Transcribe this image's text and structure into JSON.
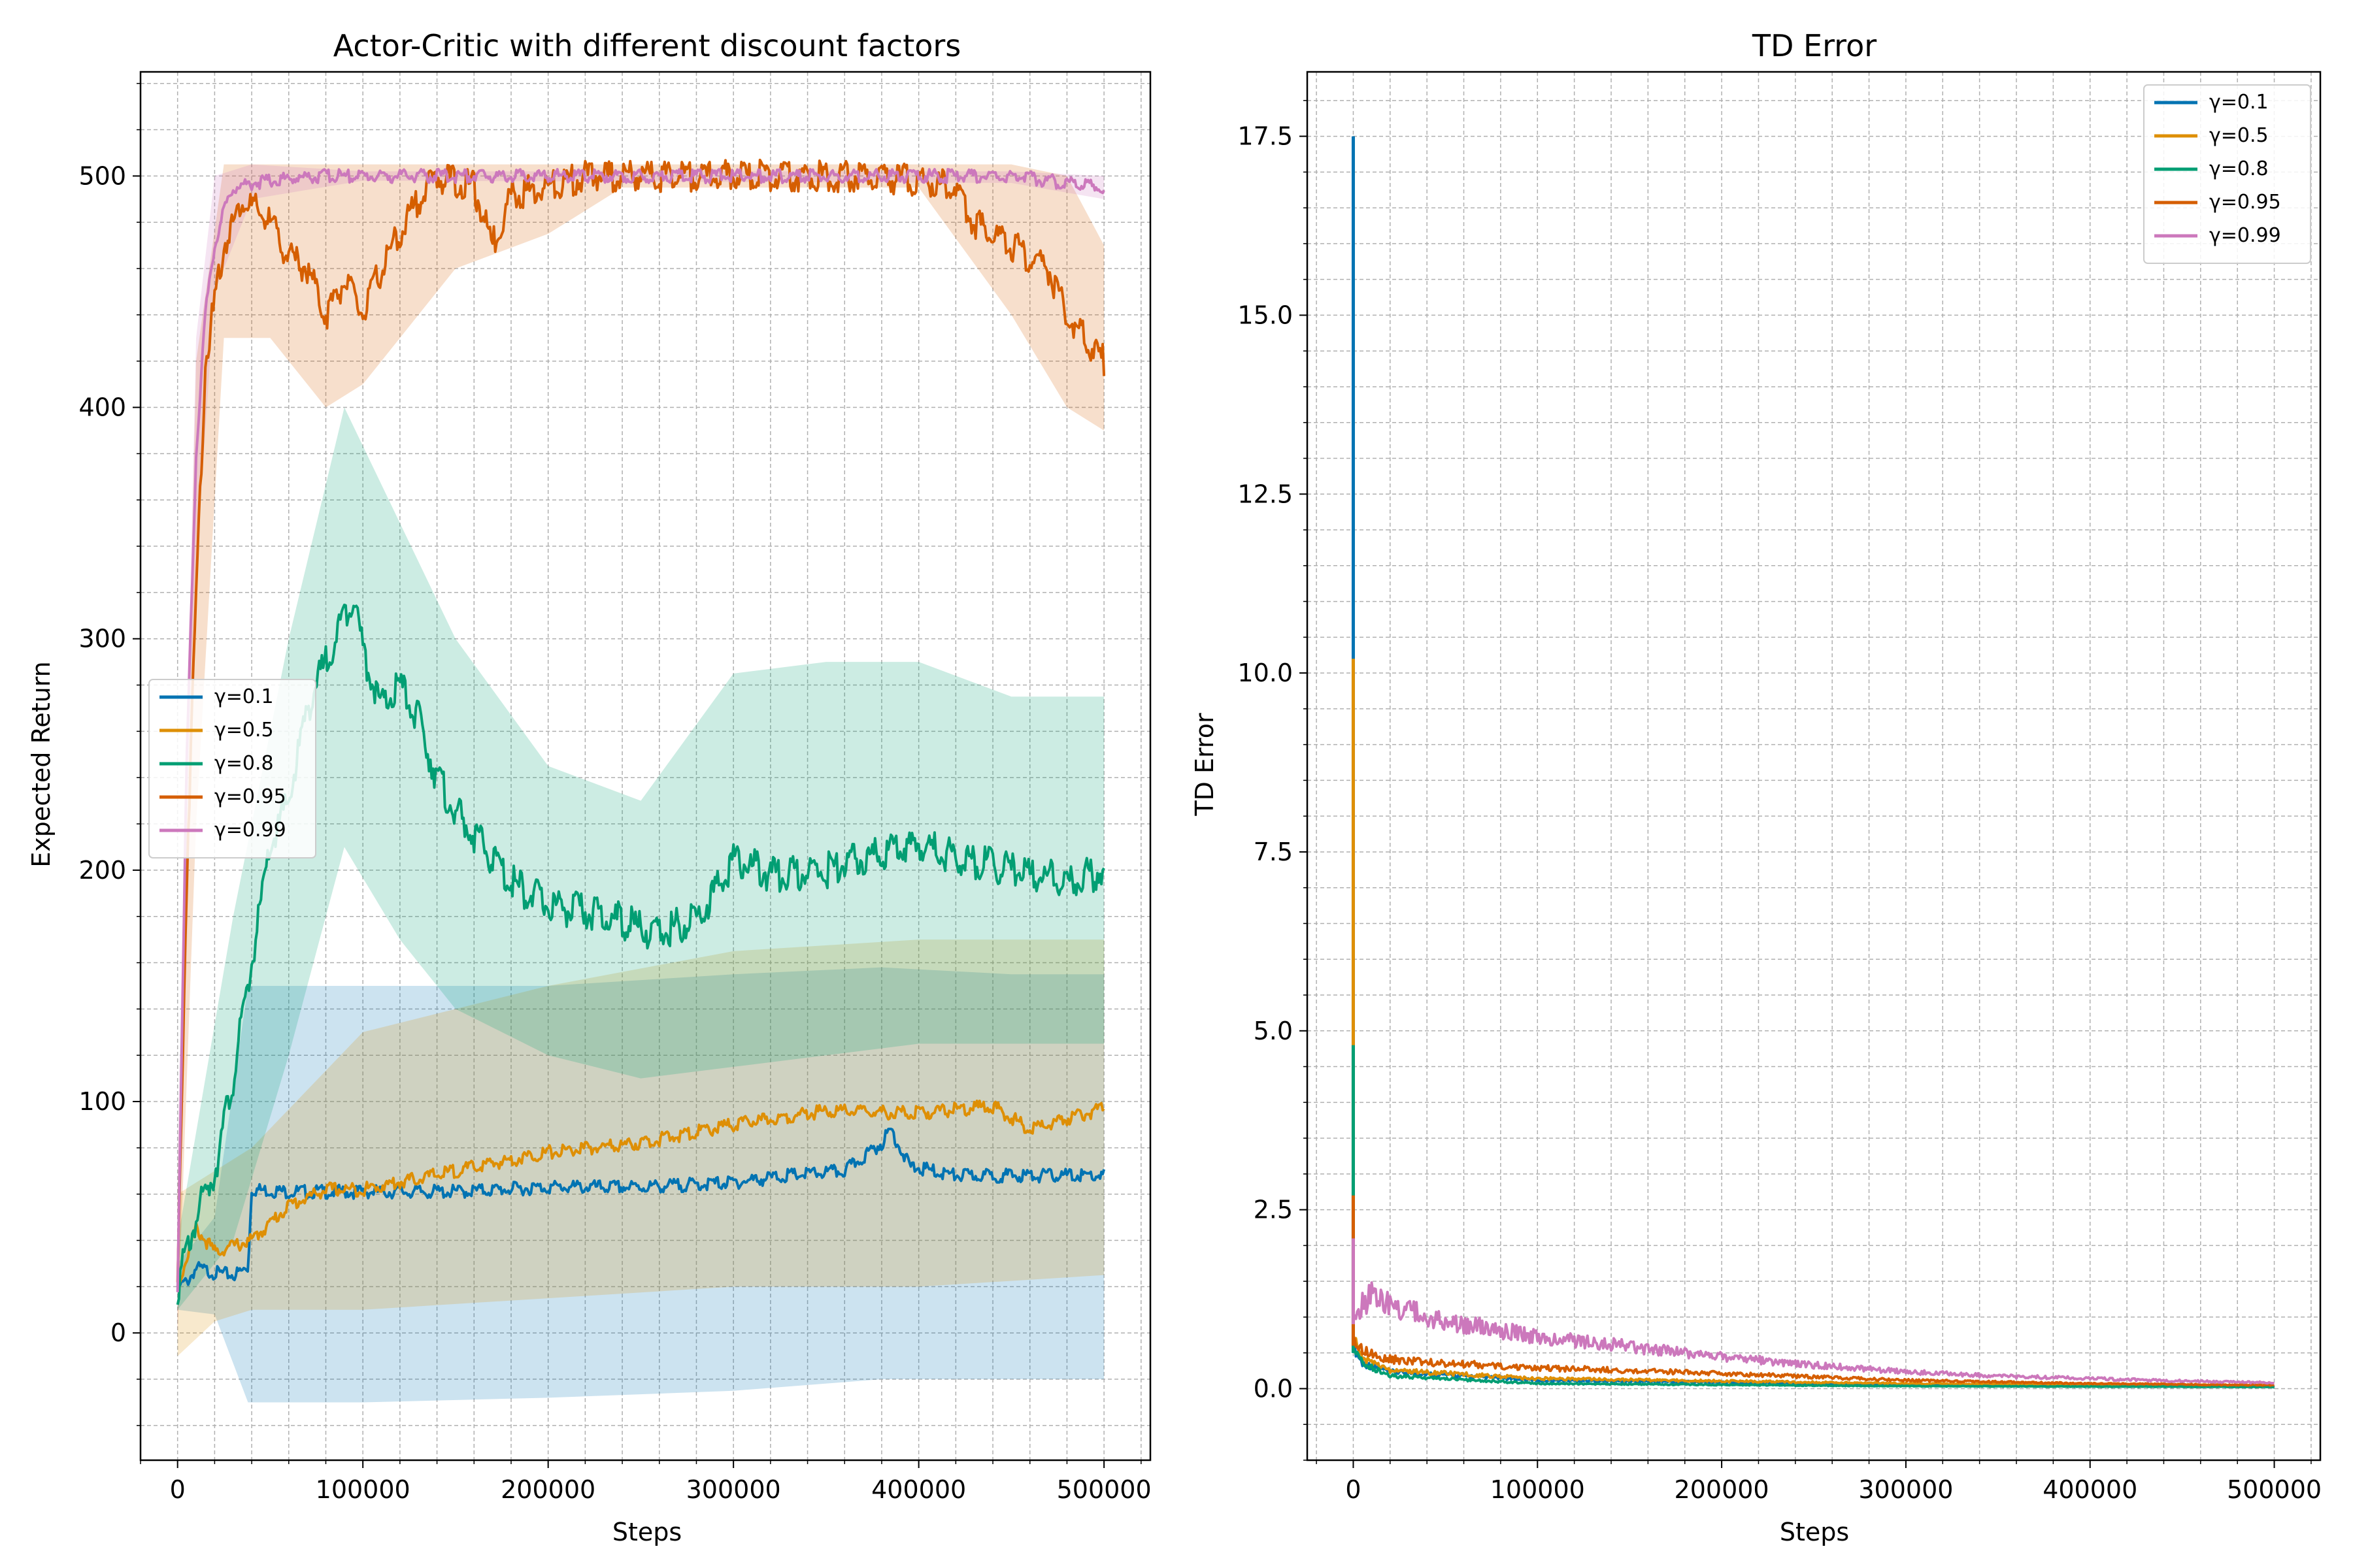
{
  "chart_data": [
    {
      "type": "line",
      "title": "Actor-Critic with different discount factors",
      "xlabel": "Steps",
      "ylabel": "Expected Return",
      "xlim": [
        -20000,
        525000
      ],
      "ylim": [
        -55,
        545
      ],
      "xticks": [
        0,
        100000,
        200000,
        300000,
        400000,
        500000
      ],
      "yticks": [
        0,
        100,
        200,
        300,
        400,
        500
      ],
      "grid": true,
      "legend": "center-left",
      "series": [
        {
          "name": "γ=0.1",
          "color": "#0173b2",
          "points": [
            [
              0,
              20
            ],
            [
              5000,
              22
            ],
            [
              10000,
              28
            ],
            [
              20000,
              26
            ],
            [
              30000,
              25
            ],
            [
              38000,
              28
            ],
            [
              40000,
              62
            ],
            [
              60000,
              61
            ],
            [
              100000,
              61
            ],
            [
              150000,
              61
            ],
            [
              200000,
              63
            ],
            [
              250000,
              63
            ],
            [
              300000,
              65
            ],
            [
              330000,
              68
            ],
            [
              360000,
              70
            ],
            [
              380000,
              82
            ],
            [
              385000,
              88
            ],
            [
              395000,
              72
            ],
            [
              420000,
              68
            ],
            [
              450000,
              68
            ],
            [
              500000,
              68
            ]
          ],
          "band": [
            [
              0,
              10,
              30
            ],
            [
              20000,
              8,
              50
            ],
            [
              38000,
              -30,
              150
            ],
            [
              60000,
              -30,
              150
            ],
            [
              100000,
              -30,
              150
            ],
            [
              200000,
              -28,
              150
            ],
            [
              300000,
              -25,
              155
            ],
            [
              380000,
              -20,
              158
            ],
            [
              450000,
              -20,
              155
            ],
            [
              500000,
              -20,
              155
            ]
          ]
        },
        {
          "name": "γ=0.5",
          "color": "#de8f05",
          "points": [
            [
              0,
              20
            ],
            [
              10000,
              45
            ],
            [
              20000,
              35
            ],
            [
              40000,
              40
            ],
            [
              60000,
              55
            ],
            [
              80000,
              62
            ],
            [
              100000,
              62
            ],
            [
              150000,
              70
            ],
            [
              200000,
              78
            ],
            [
              250000,
              82
            ],
            [
              300000,
              90
            ],
            [
              350000,
              96
            ],
            [
              400000,
              95
            ],
            [
              440000,
              98
            ],
            [
              460000,
              88
            ],
            [
              500000,
              97
            ]
          ],
          "band": [
            [
              0,
              -10,
              60
            ],
            [
              20000,
              5,
              70
            ],
            [
              40000,
              10,
              80
            ],
            [
              100000,
              10,
              130
            ],
            [
              200000,
              15,
              150
            ],
            [
              300000,
              20,
              165
            ],
            [
              400000,
              20,
              170
            ],
            [
              500000,
              25,
              170
            ]
          ]
        },
        {
          "name": "γ=0.8",
          "color": "#029e73",
          "points": [
            [
              0,
              20
            ],
            [
              10000,
              50
            ],
            [
              20000,
              70
            ],
            [
              30000,
              110
            ],
            [
              40000,
              160
            ],
            [
              50000,
              210
            ],
            [
              60000,
              230
            ],
            [
              70000,
              270
            ],
            [
              80000,
              290
            ],
            [
              90000,
              310
            ],
            [
              95000,
              320
            ],
            [
              100000,
              295
            ],
            [
              110000,
              270
            ],
            [
              120000,
              280
            ],
            [
              130000,
              265
            ],
            [
              140000,
              240
            ],
            [
              150000,
              225
            ],
            [
              160000,
              215
            ],
            [
              180000,
              195
            ],
            [
              200000,
              185
            ],
            [
              220000,
              182
            ],
            [
              240000,
              178
            ],
            [
              260000,
              172
            ],
            [
              280000,
              180
            ],
            [
              290000,
              190
            ],
            [
              300000,
              205
            ],
            [
              320000,
              198
            ],
            [
              350000,
              200
            ],
            [
              370000,
              205
            ],
            [
              400000,
              212
            ],
            [
              420000,
              205
            ],
            [
              450000,
              200
            ],
            [
              480000,
              195
            ],
            [
              500000,
              200
            ]
          ],
          "band": [
            [
              0,
              10,
              40
            ],
            [
              30000,
              40,
              180
            ],
            [
              60000,
              120,
              300
            ],
            [
              90000,
              210,
              400
            ],
            [
              120000,
              170,
              350
            ],
            [
              150000,
              140,
              300
            ],
            [
              200000,
              120,
              245
            ],
            [
              250000,
              110,
              230
            ],
            [
              300000,
              115,
              285
            ],
            [
              350000,
              120,
              290
            ],
            [
              400000,
              125,
              290
            ],
            [
              450000,
              125,
              275
            ],
            [
              500000,
              125,
              275
            ]
          ]
        },
        {
          "name": "γ=0.95",
          "color": "#d55e00",
          "points": [
            [
              0,
              20
            ],
            [
              5000,
              200
            ],
            [
              10000,
              320
            ],
            [
              15000,
              420
            ],
            [
              25000,
              470
            ],
            [
              35000,
              490
            ],
            [
              50000,
              480
            ],
            [
              60000,
              465
            ],
            [
              70000,
              460
            ],
            [
              80000,
              440
            ],
            [
              90000,
              455
            ],
            [
              100000,
              440
            ],
            [
              110000,
              460
            ],
            [
              120000,
              475
            ],
            [
              130000,
              490
            ],
            [
              140000,
              500
            ],
            [
              160000,
              495
            ],
            [
              170000,
              470
            ],
            [
              180000,
              492
            ],
            [
              200000,
              495
            ],
            [
              220000,
              500
            ],
            [
              240000,
              500
            ],
            [
              300000,
              500
            ],
            [
              370000,
              500
            ],
            [
              400000,
              498
            ],
            [
              420000,
              495
            ],
            [
              430000,
              480
            ],
            [
              450000,
              470
            ],
            [
              470000,
              460
            ],
            [
              480000,
              440
            ],
            [
              500000,
              420
            ]
          ],
          "band": [
            [
              0,
              0,
              60
            ],
            [
              10000,
              220,
              420
            ],
            [
              25000,
              430,
              505
            ],
            [
              50000,
              430,
              505
            ],
            [
              80000,
              400,
              505
            ],
            [
              100000,
              410,
              505
            ],
            [
              150000,
              460,
              505
            ],
            [
              200000,
              475,
              505
            ],
            [
              240000,
              495,
              505
            ],
            [
              400000,
              495,
              505
            ],
            [
              450000,
              440,
              505
            ],
            [
              480000,
              400,
              500
            ],
            [
              500000,
              390,
              470
            ]
          ]
        },
        {
          "name": "γ=0.99",
          "color": "#cc78bc",
          "points": [
            [
              0,
              20
            ],
            [
              5000,
              250
            ],
            [
              10000,
              380
            ],
            [
              15000,
              440
            ],
            [
              20000,
              470
            ],
            [
              25000,
              485
            ],
            [
              30000,
              495
            ],
            [
              40000,
              497
            ],
            [
              60000,
              499
            ],
            [
              80000,
              500
            ],
            [
              200000,
              500
            ],
            [
              300000,
              500
            ],
            [
              400000,
              500
            ],
            [
              450000,
              500
            ],
            [
              480000,
              497
            ],
            [
              500000,
              495
            ]
          ],
          "band": [
            [
              0,
              0,
              80
            ],
            [
              10000,
              330,
              430
            ],
            [
              20000,
              450,
              500
            ],
            [
              40000,
              490,
              505
            ],
            [
              100000,
              498,
              502
            ],
            [
              450000,
              497,
              502
            ],
            [
              500000,
              490,
              500
            ]
          ]
        }
      ]
    },
    {
      "type": "line",
      "title": "TD Error",
      "xlabel": "Steps",
      "ylabel": "TD Error",
      "xlim": [
        -25000,
        525000
      ],
      "ylim": [
        -1,
        18.4
      ],
      "xticks": [
        0,
        100000,
        200000,
        300000,
        400000,
        500000
      ],
      "yticks": [
        0.0,
        2.5,
        5.0,
        7.5,
        10.0,
        12.5,
        15.0,
        17.5
      ],
      "grid": true,
      "legend": "top-right",
      "series": [
        {
          "name": "γ=0.1",
          "color": "#0173b2",
          "spike": 17.5,
          "points": [
            [
              0,
              0.5
            ],
            [
              5000,
              0.3
            ],
            [
              20000,
              0.2
            ],
            [
              100000,
              0.1
            ],
            [
              300000,
              0.05
            ],
            [
              500000,
              0.03
            ]
          ]
        },
        {
          "name": "γ=0.5",
          "color": "#de8f05",
          "spike": 10.2,
          "points": [
            [
              0,
              0.6
            ],
            [
              5000,
              0.35
            ],
            [
              20000,
              0.22
            ],
            [
              100000,
              0.12
            ],
            [
              300000,
              0.06
            ],
            [
              500000,
              0.04
            ]
          ]
        },
        {
          "name": "γ=0.8",
          "color": "#029e73",
          "spike": 4.8,
          "points": [
            [
              0,
              0.5
            ],
            [
              5000,
              0.3
            ],
            [
              20000,
              0.15
            ],
            [
              100000,
              0.06
            ],
            [
              300000,
              0.03
            ],
            [
              500000,
              0.02
            ]
          ]
        },
        {
          "name": "γ=0.95",
          "color": "#d55e00",
          "spike": 2.7,
          "points": [
            [
              0,
              0.6
            ],
            [
              5000,
              0.45
            ],
            [
              20000,
              0.35
            ],
            [
              50000,
              0.3
            ],
            [
              100000,
              0.25
            ],
            [
              200000,
              0.18
            ],
            [
              300000,
              0.1
            ],
            [
              400000,
              0.06
            ],
            [
              500000,
              0.04
            ]
          ]
        },
        {
          "name": "γ=0.99",
          "color": "#cc78bc",
          "spike": 2.1,
          "points": [
            [
              0,
              0.9
            ],
            [
              10000,
              1.1
            ],
            [
              20000,
              1.0
            ],
            [
              50000,
              0.8
            ],
            [
              100000,
              0.62
            ],
            [
              150000,
              0.5
            ],
            [
              200000,
              0.38
            ],
            [
              250000,
              0.28
            ],
            [
              300000,
              0.2
            ],
            [
              350000,
              0.15
            ],
            [
              400000,
              0.12
            ],
            [
              450000,
              0.09
            ],
            [
              500000,
              0.07
            ]
          ]
        }
      ]
    }
  ]
}
